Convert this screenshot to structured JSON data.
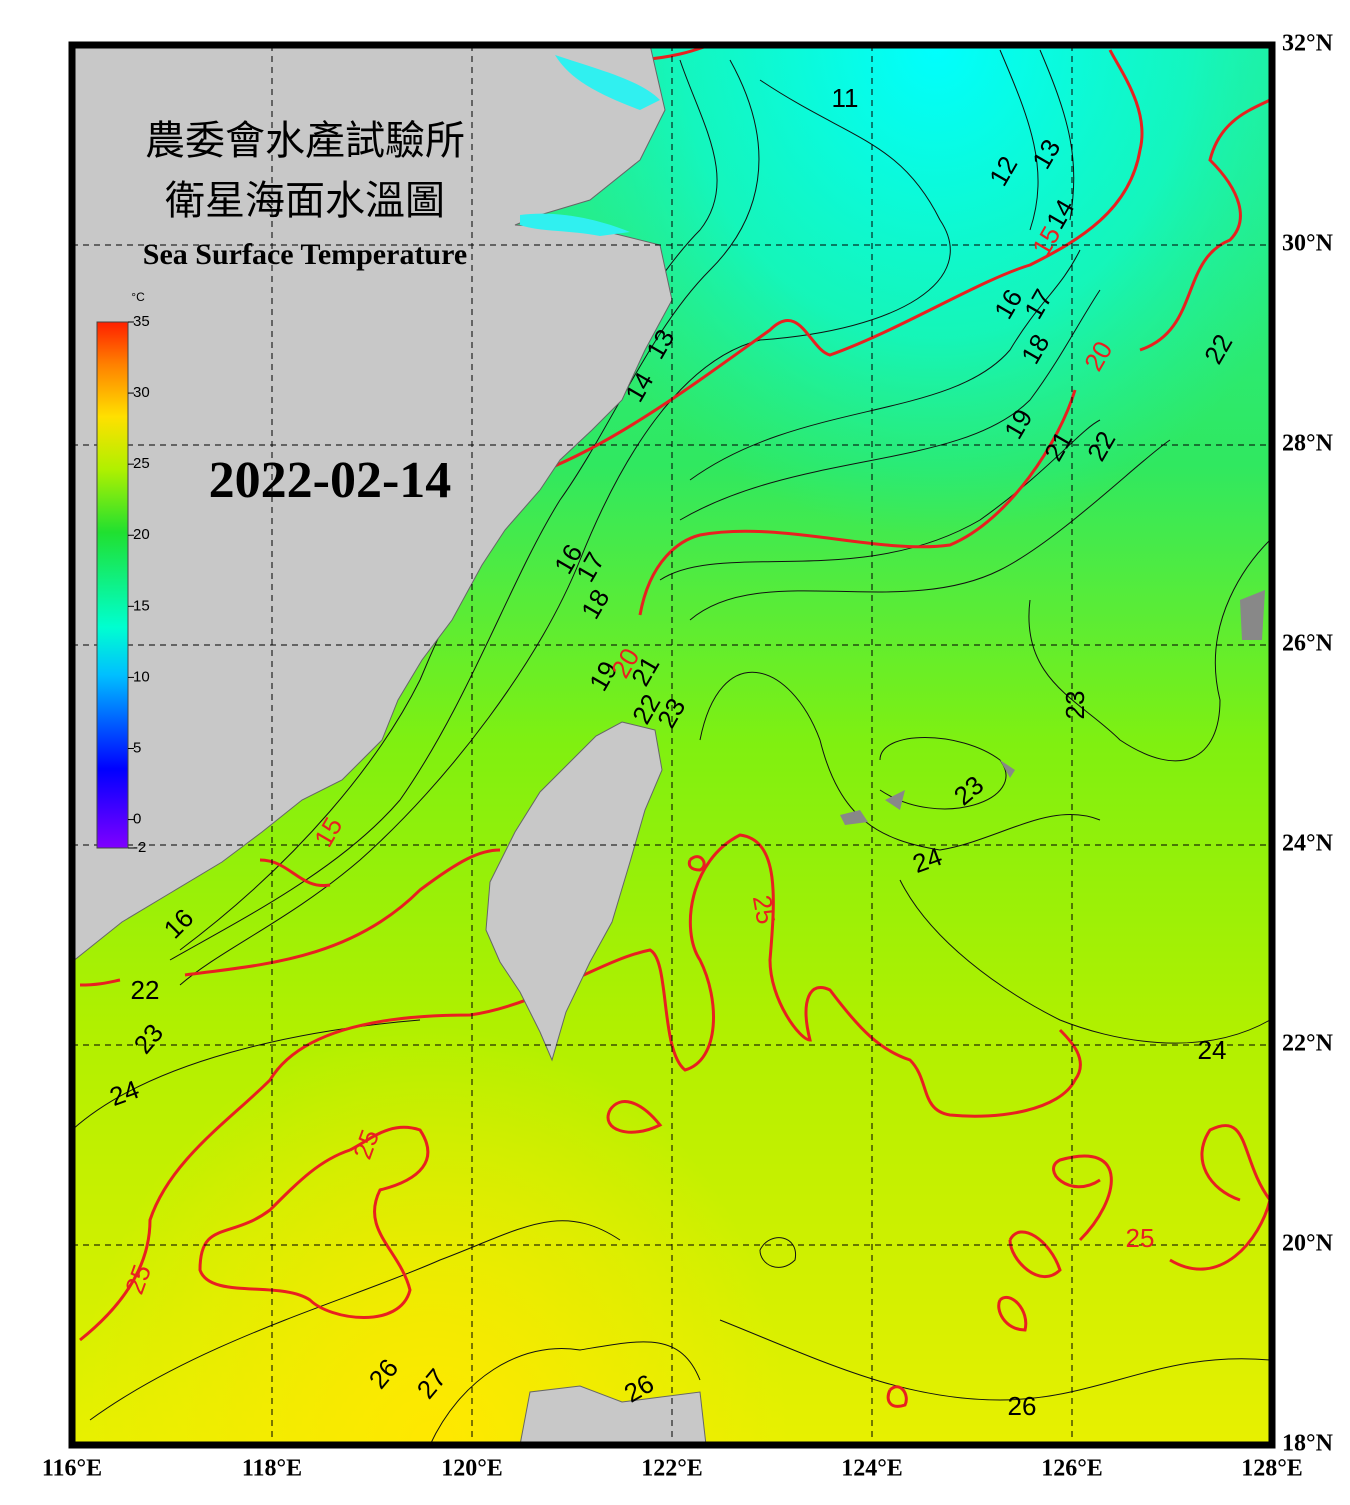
{
  "header": {
    "title_zh_1": "農委會水產試驗所",
    "title_zh_2": "衛星海面水溫圖",
    "title_en": "Sea Surface Temperature"
  },
  "date": "2022-02-14",
  "colorbar": {
    "unit": "°C",
    "range": [
      -2,
      35
    ],
    "ticks": [
      35,
      30,
      25,
      20,
      15,
      10,
      5,
      0,
      -2
    ]
  },
  "map": {
    "lonlim": [
      116,
      128
    ],
    "latlim": [
      18,
      32
    ],
    "lonticks": [
      {
        "value": 116,
        "label": "116°E"
      },
      {
        "value": 118,
        "label": "118°E"
      },
      {
        "value": 120,
        "label": "120°E"
      },
      {
        "value": 122,
        "label": "122°E"
      },
      {
        "value": 124,
        "label": "124°E"
      },
      {
        "value": 126,
        "label": "126°E"
      },
      {
        "value": 128,
        "label": "128°E"
      }
    ],
    "latticks": [
      {
        "value": 18,
        "label": "18°N"
      },
      {
        "value": 20,
        "label": "20°N"
      },
      {
        "value": 22,
        "label": "22°N"
      },
      {
        "value": 24,
        "label": "24°N"
      },
      {
        "value": 26,
        "label": "26°N"
      },
      {
        "value": 28,
        "label": "28°N"
      },
      {
        "value": 30,
        "label": "30°N"
      },
      {
        "value": 32,
        "label": "32°N"
      }
    ],
    "contour_labels": [
      "11",
      "12",
      "13",
      "14",
      "15",
      "16",
      "17",
      "18",
      "19",
      "20",
      "21",
      "22",
      "22",
      "16",
      "17",
      "18",
      "19",
      "20",
      "21",
      "22",
      "23",
      "13",
      "14",
      "15",
      "23",
      "23",
      "24",
      "25",
      "24",
      "23",
      "22",
      "24",
      "25",
      "25",
      "26",
      "27",
      "26",
      "26",
      "25",
      "16"
    ]
  }
}
